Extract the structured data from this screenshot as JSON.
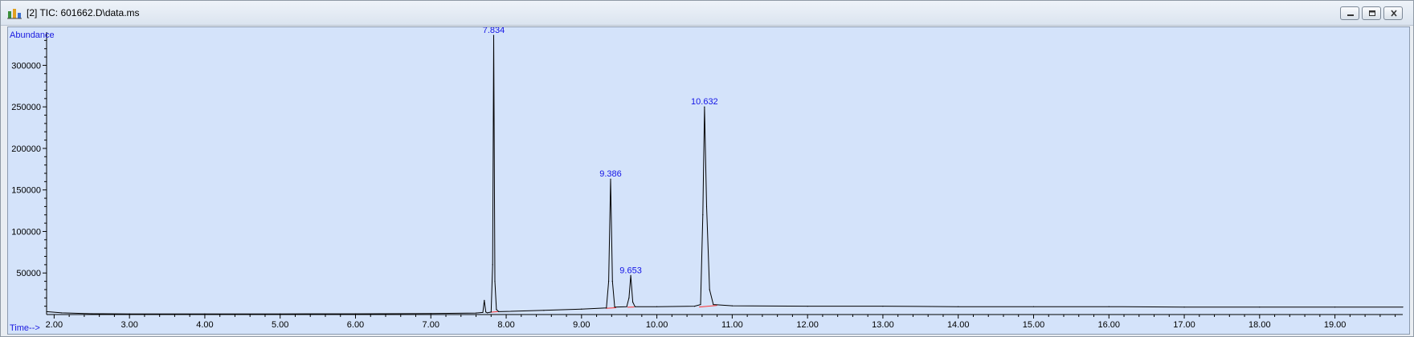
{
  "window": {
    "title": "[2] TIC: 601662.D\\data.ms",
    "icon": "chromatogram-app-icon",
    "buttons": [
      "minimize-icon",
      "restore-icon",
      "close-icon"
    ]
  },
  "colors": {
    "plot_background": "#d4e3fa",
    "trace": "#000000",
    "baseline_marks": "#ff3030",
    "peak_labels": "#1414e6",
    "axis_titles": "#1a1ae0"
  },
  "chart_data": {
    "type": "line",
    "ylabel": "Abundance",
    "xlabel": "Time-->",
    "xlim": [
      1.9,
      19.9
    ],
    "ylim": [
      0,
      340000
    ],
    "x_ticks": [
      "2.00",
      "3.00",
      "4.00",
      "5.00",
      "6.00",
      "7.00",
      "8.00",
      "9.00",
      "10.00",
      "11.00",
      "12.00",
      "13.00",
      "14.00",
      "15.00",
      "16.00",
      "17.00",
      "18.00",
      "19.00"
    ],
    "y_ticks": [
      50000,
      100000,
      150000,
      200000,
      250000,
      300000
    ],
    "y_tick_labels": [
      "50000",
      "100000",
      "150000",
      "200000",
      "250000",
      "300000"
    ],
    "grid": false,
    "series": [
      {
        "x": [
          1.9,
          2.1,
          2.5,
          3.0,
          4.0,
          5.0,
          6.0,
          7.0,
          7.6,
          7.69,
          7.71,
          7.73,
          7.75,
          7.8,
          7.82,
          7.834,
          7.85,
          7.87,
          7.9,
          8.5,
          9.0,
          9.33,
          9.36,
          9.386,
          9.41,
          9.44,
          9.6,
          9.63,
          9.653,
          9.68,
          9.71,
          10.0,
          10.5,
          10.58,
          10.61,
          10.632,
          10.66,
          10.7,
          10.75,
          11.0,
          12.0,
          13.0,
          14.0,
          15.0,
          16.0,
          17.0,
          18.0,
          19.0,
          19.9
        ],
        "y": [
          3500,
          2000,
          1000,
          800,
          800,
          800,
          900,
          1200,
          1800,
          2500,
          17000,
          3000,
          2000,
          3000,
          60000,
          336000,
          40000,
          6000,
          3500,
          5000,
          6500,
          8000,
          40000,
          163000,
          40000,
          9000,
          9500,
          20000,
          47000,
          15000,
          9500,
          9500,
          10000,
          12000,
          120000,
          250000,
          130000,
          30000,
          12000,
          10500,
          10000,
          10000,
          9500,
          9500,
          9500,
          9000,
          9000,
          9000,
          9000
        ]
      }
    ],
    "peaks": [
      {
        "time": 7.834,
        "abundance": 336000,
        "label": "7.834"
      },
      {
        "time": 9.386,
        "abundance": 163000,
        "label": "9.386"
      },
      {
        "time": 9.653,
        "abundance": 47000,
        "label": "9.653"
      },
      {
        "time": 10.632,
        "abundance": 250000,
        "label": "10.632"
      }
    ],
    "integration_baselines": [
      {
        "from": [
          7.79,
          2800
        ],
        "to": [
          7.89,
          3500
        ]
      },
      {
        "from": [
          9.32,
          7500
        ],
        "to": [
          9.46,
          8200
        ]
      },
      {
        "from": [
          9.61,
          8800
        ],
        "to": [
          9.7,
          9000
        ]
      },
      {
        "from": [
          10.56,
          9000
        ],
        "to": [
          10.8,
          11000
        ]
      }
    ]
  }
}
